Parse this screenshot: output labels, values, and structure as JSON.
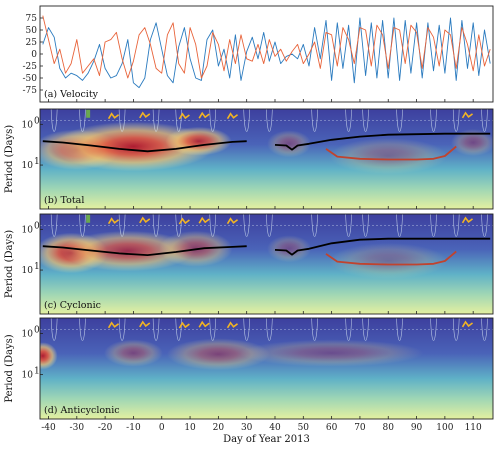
{
  "chart_data": [
    {
      "type": "line",
      "panel_label": "(a) Velocity",
      "ylim": [
        -100,
        100
      ],
      "yticks": [
        75,
        50,
        25,
        0,
        -25,
        -50,
        -75
      ],
      "xlim": [
        -43,
        117
      ],
      "colors": {
        "u": "#2b7bbf",
        "v": "#e8633a"
      },
      "series": [
        {
          "color_key": "u",
          "x": [
            -42,
            -40,
            -38,
            -36,
            -34,
            -32,
            -30,
            -28,
            -26,
            -24,
            -22,
            -20,
            -18,
            -16,
            -14,
            -12,
            -10,
            -8,
            -6,
            -4,
            -2,
            0,
            2,
            4,
            6,
            8,
            10,
            12,
            14,
            16,
            18,
            20,
            22,
            24,
            26,
            28,
            30,
            32,
            34,
            36,
            38,
            40,
            42,
            44,
            46,
            48,
            50,
            52,
            54,
            56,
            58,
            60,
            62,
            64,
            66,
            68,
            70,
            72,
            74,
            76,
            78,
            80,
            82,
            84,
            86,
            88,
            90,
            92,
            94,
            96,
            98,
            100,
            102,
            104,
            106,
            108,
            110,
            112,
            114,
            116
          ],
          "y": [
            20,
            55,
            35,
            -30,
            -50,
            -40,
            -45,
            -55,
            -40,
            -15,
            20,
            -30,
            -50,
            -45,
            -20,
            30,
            -60,
            -70,
            -50,
            30,
            65,
            10,
            -45,
            -60,
            15,
            55,
            -10,
            -50,
            -55,
            30,
            50,
            -25,
            10,
            -50,
            40,
            -55,
            5,
            35,
            -10,
            45,
            -15,
            25,
            -20,
            -5,
            0,
            -10,
            20,
            -25,
            55,
            -10,
            70,
            -55,
            65,
            -30,
            60,
            -60,
            75,
            -45,
            65,
            -50,
            70,
            -50,
            75,
            -55,
            70,
            -40,
            65,
            -50,
            65,
            -35,
            60,
            -40,
            75,
            -55,
            70,
            -30,
            65,
            -45,
            50,
            -20
          ]
        },
        {
          "color_key": "v",
          "x": [
            -42,
            -40,
            -38,
            -36,
            -34,
            -32,
            -30,
            -28,
            -26,
            -24,
            -22,
            -20,
            -18,
            -16,
            -14,
            -12,
            -10,
            -8,
            -6,
            -4,
            -2,
            0,
            2,
            4,
            6,
            8,
            10,
            12,
            14,
            16,
            18,
            20,
            22,
            24,
            26,
            28,
            30,
            32,
            34,
            36,
            38,
            40,
            42,
            44,
            46,
            48,
            50,
            52,
            54,
            56,
            58,
            60,
            62,
            64,
            66,
            68,
            70,
            72,
            74,
            76,
            78,
            80,
            82,
            84,
            86,
            88,
            90,
            92,
            94,
            96,
            98,
            100,
            102,
            104,
            106,
            108,
            110,
            112,
            114,
            116
          ],
          "y": [
            80,
            30,
            -20,
            10,
            -40,
            -20,
            30,
            -40,
            -25,
            -10,
            -45,
            25,
            30,
            45,
            -10,
            -50,
            -15,
            40,
            55,
            20,
            -30,
            -40,
            40,
            65,
            -20,
            -40,
            55,
            20,
            -50,
            -25,
            45,
            20,
            -35,
            30,
            -20,
            40,
            -10,
            -15,
            20,
            -20,
            30,
            -5,
            10,
            -15,
            5,
            20,
            -20,
            0,
            25,
            -30,
            45,
            40,
            -25,
            55,
            30,
            -20,
            55,
            50,
            -25,
            60,
            40,
            -30,
            55,
            50,
            -20,
            60,
            45,
            -30,
            55,
            35,
            -25,
            50,
            40,
            -30,
            55,
            20,
            -35,
            40,
            -25,
            10
          ]
        }
      ]
    },
    {
      "type": "heatmap",
      "panel_label": "(b) Total",
      "xlim": [
        -43,
        117
      ],
      "y_scale": "log",
      "yticks": [
        "10^0",
        "10^1"
      ],
      "ylabel": "Period (Days)",
      "hot_blobs": [
        {
          "x": -30,
          "period": 4.2,
          "wx": 12,
          "wy": 0.45,
          "amp": 0.75
        },
        {
          "x": -10,
          "period": 3.5,
          "wx": 22,
          "wy": 0.55,
          "amp": 0.95
        },
        {
          "x": 13,
          "period": 2.6,
          "wx": 9,
          "wy": 0.32,
          "amp": 0.85
        },
        {
          "x": 45,
          "period": 3.0,
          "wx": 6,
          "wy": 0.3,
          "amp": 0.35
        },
        {
          "x": 80,
          "period": 6.0,
          "wx": 16,
          "wy": 0.4,
          "amp": 0.3
        },
        {
          "x": 110,
          "period": 2.8,
          "wx": 6,
          "wy": 0.3,
          "amp": 0.35
        }
      ],
      "ridge_black": {
        "x": [
          -42,
          -35,
          -25,
          -15,
          -5,
          5,
          15,
          25,
          30,
          null,
          40,
          44,
          46,
          48,
          52,
          60,
          70,
          80,
          90,
          100,
          110,
          116
        ],
        "period": [
          2.6,
          2.8,
          3.3,
          4.0,
          4.6,
          4.0,
          3.2,
          2.7,
          2.6,
          null,
          3.2,
          3.3,
          4.2,
          3.3,
          3.0,
          2.4,
          2.0,
          1.8,
          1.75,
          1.7,
          1.7,
          1.7
        ]
      },
      "ridge_red": {
        "x": [
          58,
          62,
          70,
          80,
          90,
          96,
          100,
          104
        ],
        "period": [
          4.0,
          6.2,
          7.0,
          7.3,
          7.3,
          7.0,
          6.0,
          3.5
        ]
      },
      "yellow_marks": [
        {
          "x": -17,
          "period": 0.65
        },
        {
          "x": -6,
          "period": 0.62
        },
        {
          "x": 8,
          "period": 0.66
        },
        {
          "x": 15,
          "period": 0.63
        },
        {
          "x": 25,
          "period": 0.65
        },
        {
          "x": 108,
          "period": 0.62
        }
      ],
      "green_mark": {
        "x": -26,
        "period": 0.55
      }
    },
    {
      "type": "heatmap",
      "panel_label": "(c) Cyclonic",
      "xlim": [
        -43,
        117
      ],
      "y_scale": "log",
      "yticks": [
        "10^0",
        "10^1"
      ],
      "ylabel": "Period (Days)",
      "hot_blobs": [
        {
          "x": -32,
          "period": 3.8,
          "wx": 10,
          "wy": 0.45,
          "amp": 0.9
        },
        {
          "x": -12,
          "period": 3.4,
          "wx": 18,
          "wy": 0.45,
          "amp": 0.75
        },
        {
          "x": 12,
          "period": 3.0,
          "wx": 10,
          "wy": 0.4,
          "amp": 0.55
        },
        {
          "x": 45,
          "period": 3.0,
          "wx": 6,
          "wy": 0.3,
          "amp": 0.3
        },
        {
          "x": 80,
          "period": 6.0,
          "wx": 16,
          "wy": 0.4,
          "amp": 0.25
        }
      ],
      "ridge_black": {
        "x": [
          -42,
          -35,
          -25,
          -15,
          -5,
          5,
          15,
          25,
          30,
          null,
          40,
          44,
          46,
          48,
          52,
          60,
          70,
          80,
          90,
          100,
          110,
          116
        ],
        "period": [
          2.6,
          2.8,
          3.3,
          3.9,
          4.3,
          3.6,
          2.9,
          2.7,
          2.6,
          null,
          3.2,
          3.3,
          4.2,
          3.3,
          3.0,
          2.2,
          1.8,
          1.7,
          1.7,
          1.7,
          1.7,
          1.7
        ]
      },
      "ridge_red": {
        "x": [
          58,
          62,
          70,
          80,
          90,
          96,
          100,
          104
        ],
        "period": [
          4.0,
          6.2,
          7.0,
          7.3,
          7.3,
          7.0,
          6.0,
          3.5
        ]
      },
      "yellow_marks": [
        {
          "x": -17,
          "period": 0.65
        },
        {
          "x": -6,
          "period": 0.62
        },
        {
          "x": 8,
          "period": 0.66
        },
        {
          "x": 15,
          "period": 0.63
        },
        {
          "x": 25,
          "period": 0.65
        },
        {
          "x": 108,
          "period": 0.62
        }
      ],
      "green_mark": {
        "x": -26,
        "period": 0.55
      }
    },
    {
      "type": "heatmap",
      "panel_label": "(d) Anticyclonic",
      "xlim": [
        -43,
        117
      ],
      "y_scale": "log",
      "yticks": [
        "10^0",
        "10^1"
      ],
      "ylabel": "Period (Days)",
      "hot_blobs": [
        {
          "x": -42,
          "period": 3.5,
          "wx": 4,
          "wy": 0.3,
          "amp": 0.95
        },
        {
          "x": -10,
          "period": 3.0,
          "wx": 8,
          "wy": 0.3,
          "amp": 0.4
        },
        {
          "x": 20,
          "period": 3.2,
          "wx": 14,
          "wy": 0.35,
          "amp": 0.45
        },
        {
          "x": 60,
          "period": 3.0,
          "wx": 25,
          "wy": 0.3,
          "amp": 0.3
        }
      ],
      "yellow_marks": [
        {
          "x": -17,
          "period": 0.65
        },
        {
          "x": -6,
          "period": 0.62
        },
        {
          "x": 8,
          "period": 0.66
        },
        {
          "x": 15,
          "period": 0.63
        },
        {
          "x": 25,
          "period": 0.65
        },
        {
          "x": 108,
          "period": 0.62
        }
      ]
    }
  ],
  "xaxis": {
    "label": "Day of Year 2013",
    "ticks": [
      -40,
      -30,
      -20,
      -10,
      0,
      10,
      20,
      30,
      40,
      50,
      60,
      70,
      80,
      90,
      100,
      110
    ]
  }
}
